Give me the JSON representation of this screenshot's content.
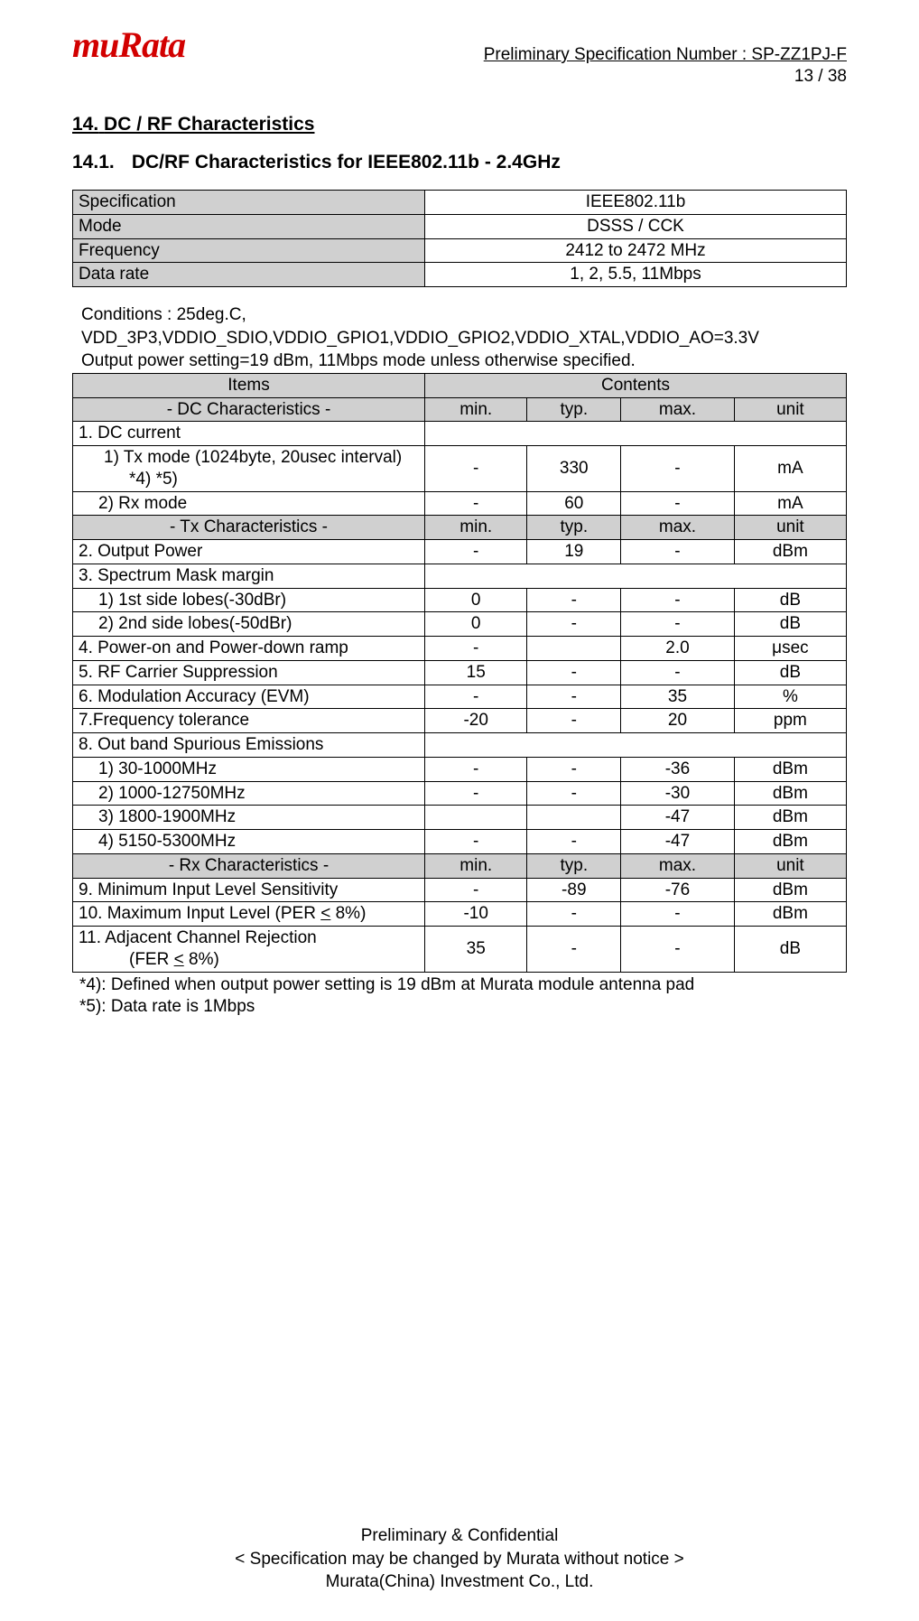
{
  "logo_text": "muRata",
  "header": {
    "spec_number": "Preliminary  Specification  Number  :  SP-ZZ1PJ-F",
    "page": "13 / 38"
  },
  "section": {
    "number": "14.",
    "title": "DC / RF Characteristics"
  },
  "subsection": {
    "number": "14.1.",
    "title": "DC/RF Characteristics for IEEE802.11b - 2.4GHz"
  },
  "spec_table": {
    "rows": [
      {
        "label": "Specification",
        "value": "IEEE802.11b"
      },
      {
        "label": "Mode",
        "value": "DSSS / CCK"
      },
      {
        "label": "Frequency",
        "value": "2412 to 2472 MHz"
      },
      {
        "label": "Data rate",
        "value": "1, 2, 5.5, 11Mbps"
      }
    ]
  },
  "conditions": {
    "line1": "Conditions : 25deg.C,",
    "line2": "VDD_3P3,VDDIO_SDIO,VDDIO_GPIO1,VDDIO_GPIO2,VDDIO_XTAL,VDDIO_AO=3.3V",
    "line3": "Output power setting=19 dBm, 11Mbps mode unless otherwise specified."
  },
  "char_table": {
    "hdr_items": "Items",
    "hdr_contents": "Contents",
    "col_min": "min.",
    "col_typ": "typ.",
    "col_max": "max.",
    "col_unit": "unit",
    "sect_dc": "- DC Characteristics -",
    "sect_tx": "- Tx Characteristics -",
    "sect_rx": "- Rx Characteristics -",
    "r1": {
      "label": "1. DC current"
    },
    "r1a": {
      "label1": "1) Tx mode (1024byte, 20usec interval)",
      "label2": "*4) *5)",
      "min": "-",
      "typ": "330",
      "max": "-",
      "unit": "mA"
    },
    "r1b": {
      "label": "2) Rx mode",
      "min": "-",
      "typ": "60",
      "max": "-",
      "unit": "mA"
    },
    "r2": {
      "label": "2. Output Power",
      "min": "-",
      "typ": "19",
      "max": "-",
      "unit": "dBm"
    },
    "r3": {
      "label": "3. Spectrum Mask  margin"
    },
    "r3a": {
      "label": "1) 1st side lobes(-30dBr)",
      "min": "0",
      "typ": "-",
      "max": "-",
      "unit": "dB"
    },
    "r3b": {
      "label": "2) 2nd side lobes(-50dBr)",
      "min": "0",
      "typ": "-",
      "max": "-",
      "unit": "dB"
    },
    "r4": {
      "label": "4. Power-on and Power-down ramp",
      "min": "-",
      "typ": "",
      "max": "2.0",
      "unit": "μsec"
    },
    "r5": {
      "label": "5. RF Carrier Suppression",
      "min": "15",
      "typ": "-",
      "max": "-",
      "unit": "dB"
    },
    "r6": {
      "label": "6. Modulation Accuracy (EVM)",
      "min": "-",
      "typ": "-",
      "max": "35",
      "unit": "%"
    },
    "r7": {
      "label": "7.Frequency tolerance",
      "min": "-20",
      "typ": "-",
      "max": "20",
      "unit": "ppm"
    },
    "r8": {
      "label": "8. Out band Spurious Emissions"
    },
    "r8a": {
      "label": "1) 30-1000MHz",
      "min": "-",
      "typ": "-",
      "max": "-36",
      "unit": "dBm"
    },
    "r8b": {
      "label": "2) 1000-12750MHz",
      "min": "-",
      "typ": "-",
      "max": "-30",
      "unit": "dBm"
    },
    "r8c": {
      "label": "3) 1800-1900MHz",
      "min": "",
      "typ": "",
      "max": "-47",
      "unit": "dBm"
    },
    "r8d": {
      "label": "4) 5150-5300MHz",
      "min": "-",
      "typ": "-",
      "max": "-47",
      "unit": "dBm"
    },
    "r9": {
      "label": "9. Minimum Input Level Sensitivity",
      "min": "-",
      "typ": "-89",
      "max": "-76",
      "unit": "dBm"
    },
    "r10_a": "10. Maximum Input Level (PER ",
    "r10_b": "<",
    "r10_c": " 8%)",
    "r10": {
      "min": "-10",
      "typ": "-",
      "max": "-",
      "unit": "dBm"
    },
    "r11_a": "11. Adjacent Channel Rejection",
    "r11_b": "(FER ",
    "r11_c": "<",
    "r11_d": " 8%)",
    "r11": {
      "min": "35",
      "typ": "-",
      "max": "-",
      "unit": "dB"
    }
  },
  "footnotes": {
    "f4": "*4): Defined when output power setting is 19 dBm at Murata module antenna pad",
    "f5": "*5): Data rate is 1Mbps"
  },
  "footer": {
    "line1": "Preliminary & Confidential",
    "line2": "< Specification may be changed by Murata without notice >",
    "line3": "Murata(China) Investment Co., Ltd."
  }
}
